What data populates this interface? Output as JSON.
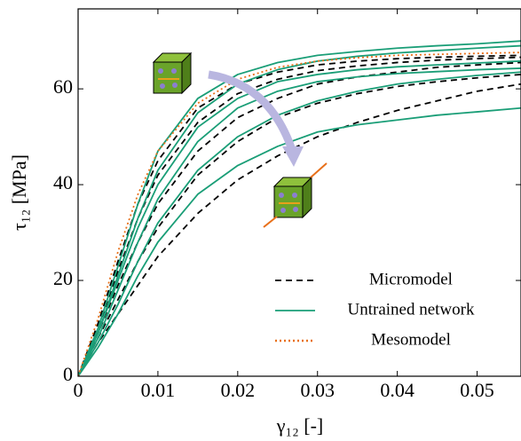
{
  "chart_data": {
    "type": "line",
    "xlabel": "γ₁₂ [-]",
    "ylabel": "τ₁₂ [MPa]",
    "x": [
      0,
      0.0025,
      0.005,
      0.0075,
      0.01,
      0.015,
      0.02,
      0.025,
      0.03,
      0.035,
      0.04,
      0.045,
      0.05,
      0.0555
    ],
    "xlim": [
      0,
      0.0555
    ],
    "ylim": [
      0,
      76.7
    ],
    "xticks": [
      0,
      0.01,
      0.02,
      0.03,
      0.04,
      0.05
    ],
    "yticks": [
      0,
      20,
      40,
      60
    ],
    "legend": "lower right",
    "series": [
      {
        "name": "Micromodel",
        "color": "#000000",
        "dash": "7 5",
        "lines": [
          {
            "values": [
              0,
              11,
              24,
              36,
              45,
              56,
              61,
              63.5,
              65,
              65.8,
              66.3,
              66.6,
              66.8,
              67
            ]
          },
          {
            "values": [
              0,
              10,
              22,
              33,
              42,
              53,
              59,
              62,
              63.8,
              64.8,
              65.5,
              66,
              66.3,
              66.6
            ]
          },
          {
            "values": [
              0,
              9,
              19,
              28,
              36,
              47,
              54,
              58,
              61,
              62.5,
              63.5,
              64.5,
              65,
              65.5
            ]
          },
          {
            "values": [
              0,
              8,
              16,
              24,
              31,
              42,
              49,
              54,
              57,
              59,
              60.5,
              61.5,
              62.3,
              63
            ]
          },
          {
            "values": [
              0,
              7,
              13,
              19,
              25,
              34,
              41,
              46,
              50,
              53,
              55.5,
              57.5,
              59.5,
              61
            ]
          }
        ]
      },
      {
        "name": "Untrained network",
        "color": "#1a9e77",
        "dash": "none",
        "lines": [
          {
            "values": [
              0,
              10,
              23,
              36,
              47,
              58,
              63,
              65.5,
              67,
              67.8,
              68.5,
              69,
              69.4,
              70
            ]
          },
          {
            "values": [
              0,
              9,
              21,
              33,
              43,
              55,
              61,
              64,
              65.8,
              66.8,
              67.5,
              68,
              68.5,
              69
            ]
          },
          {
            "values": [
              0,
              9,
              20,
              31,
              40,
              52,
              58,
              61.5,
              63,
              64,
              64.6,
              65,
              65.4,
              65.8
            ]
          },
          {
            "values": [
              0,
              8,
              18,
              28,
              37,
              49,
              56,
              59.5,
              61.5,
              62.5,
              63.2,
              63.6,
              64,
              64.3
            ]
          },
          {
            "values": [
              0,
              7,
              15,
              24,
              32,
              43,
              50,
              54.5,
              57.5,
              59.5,
              61,
              62,
              62.8,
              63.5
            ]
          },
          {
            "values": [
              0,
              6,
              13,
              21,
              28,
              38,
              44,
              48,
              51,
              52.5,
              53.5,
              54.5,
              55.2,
              56
            ]
          }
        ]
      },
      {
        "name": "Mesomodel",
        "color": "#e8701a",
        "dash": "2 3",
        "lines": [
          {
            "values": [
              0,
              12,
              26,
              38,
              47,
              57,
              62,
              64.5,
              65.8,
              66.5,
              67,
              67.2,
              67.4,
              67.6
            ]
          }
        ]
      }
    ]
  }
}
